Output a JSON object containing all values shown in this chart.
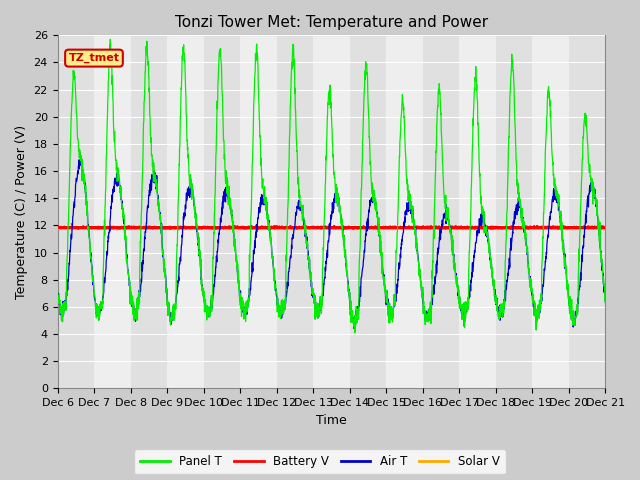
{
  "title": "Tonzi Tower Met: Temperature and Power",
  "xlabel": "Time",
  "ylabel": "Temperature (C) / Power (V)",
  "ylim": [
    0,
    26
  ],
  "x_tick_labels": [
    "Dec 6",
    "Dec 7",
    "Dec 8",
    "Dec 9",
    "Dec 10",
    "Dec 11",
    "Dec 12",
    "Dec 13",
    "Dec 14",
    "Dec 15",
    "Dec 16",
    "Dec 17",
    "Dec 18",
    "Dec 19",
    "Dec 20",
    "Dec 21"
  ],
  "label_box_text": "TZ_tmet",
  "label_box_color": "#ffee88",
  "label_box_border": "#cc0000",
  "label_box_text_color": "#cc0000",
  "panel_t_color": "#00ee00",
  "battery_v_color": "#ff0000",
  "air_t_color": "#0000cc",
  "solar_v_color": "#ffaa00",
  "battery_v_value": 11.85,
  "solar_v_value": 11.78,
  "plot_bg_light": "#eeeeee",
  "plot_bg_dark": "#e0e0e0",
  "grid_color": "#ffffff",
  "legend_labels": [
    "Panel T",
    "Battery V",
    "Air T",
    "Solar V"
  ],
  "title_fontsize": 11,
  "axis_label_fontsize": 9,
  "tick_fontsize": 8
}
